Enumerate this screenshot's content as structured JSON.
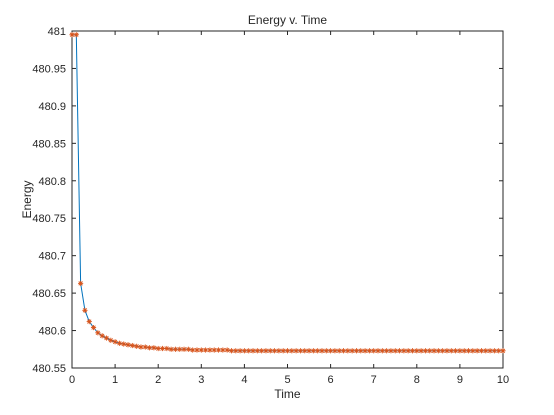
{
  "chart_data": {
    "type": "line",
    "title": "Energy v. Time",
    "xlabel": "Time",
    "ylabel": "Energy",
    "xlim": [
      0,
      10
    ],
    "ylim": [
      480.55,
      481
    ],
    "xticks": [
      0,
      1,
      2,
      3,
      4,
      5,
      6,
      7,
      8,
      9,
      10
    ],
    "xtick_labels": [
      "0",
      "1",
      "2",
      "3",
      "4",
      "5",
      "6",
      "7",
      "8",
      "9",
      "10"
    ],
    "yticks": [
      480.55,
      480.6,
      480.65,
      480.7,
      480.75,
      480.8,
      480.85,
      480.9,
      480.95,
      481
    ],
    "ytick_labels": [
      "480.55",
      "480.6",
      "480.65",
      "480.7",
      "480.75",
      "480.8",
      "480.85",
      "480.9",
      "480.95",
      "481"
    ],
    "grid": false,
    "line_color": "#0072bd",
    "marker_color": "#d95319",
    "marker": "*",
    "series": [
      {
        "x": [
          0,
          0.1,
          0.2,
          0.3,
          0.4,
          0.5,
          0.6,
          0.7,
          0.8,
          0.9,
          1.0,
          1.1,
          1.2,
          1.3,
          1.4,
          1.5,
          1.6,
          1.7,
          1.8,
          1.9,
          2.0,
          2.1,
          2.2,
          2.3,
          2.4,
          2.5,
          2.6,
          2.7,
          2.8,
          2.9,
          3.0,
          3.1,
          3.2,
          3.3,
          3.4,
          3.5,
          3.6,
          3.7,
          3.8,
          3.9,
          4.0,
          4.1,
          4.2,
          4.3,
          4.4,
          4.5,
          4.6,
          4.7,
          4.8,
          4.9,
          5.0,
          5.1,
          5.2,
          5.3,
          5.4,
          5.5,
          5.6,
          5.7,
          5.8,
          5.9,
          6.0,
          6.1,
          6.2,
          6.3,
          6.4,
          6.5,
          6.6,
          6.7,
          6.8,
          6.9,
          7.0,
          7.1,
          7.2,
          7.3,
          7.4,
          7.5,
          7.6,
          7.7,
          7.8,
          7.9,
          8.0,
          8.1,
          8.2,
          8.3,
          8.4,
          8.5,
          8.6,
          8.7,
          8.8,
          8.9,
          9.0,
          9.1,
          9.2,
          9.3,
          9.4,
          9.5,
          9.6,
          9.7,
          9.8,
          9.9,
          10.0
        ],
        "y": [
          480.995,
          480.995,
          480.663,
          480.627,
          480.612,
          480.604,
          480.597,
          480.593,
          480.59,
          480.587,
          480.585,
          480.583,
          480.582,
          480.581,
          480.58,
          480.579,
          480.578,
          480.578,
          480.577,
          480.577,
          480.576,
          480.576,
          480.576,
          480.575,
          480.575,
          480.575,
          480.575,
          480.575,
          480.574,
          480.574,
          480.574,
          480.574,
          480.574,
          480.574,
          480.574,
          480.574,
          480.574,
          480.573,
          480.573,
          480.573,
          480.573,
          480.573,
          480.573,
          480.573,
          480.573,
          480.573,
          480.573,
          480.573,
          480.573,
          480.573,
          480.573,
          480.573,
          480.573,
          480.573,
          480.573,
          480.573,
          480.573,
          480.573,
          480.573,
          480.573,
          480.573,
          480.573,
          480.573,
          480.573,
          480.573,
          480.573,
          480.573,
          480.573,
          480.573,
          480.573,
          480.573,
          480.573,
          480.573,
          480.573,
          480.573,
          480.573,
          480.573,
          480.573,
          480.573,
          480.573,
          480.573,
          480.573,
          480.573,
          480.573,
          480.573,
          480.573,
          480.573,
          480.573,
          480.573,
          480.573,
          480.573,
          480.573,
          480.573,
          480.573,
          480.573,
          480.573,
          480.573,
          480.573,
          480.573,
          480.573,
          480.573
        ]
      }
    ]
  }
}
